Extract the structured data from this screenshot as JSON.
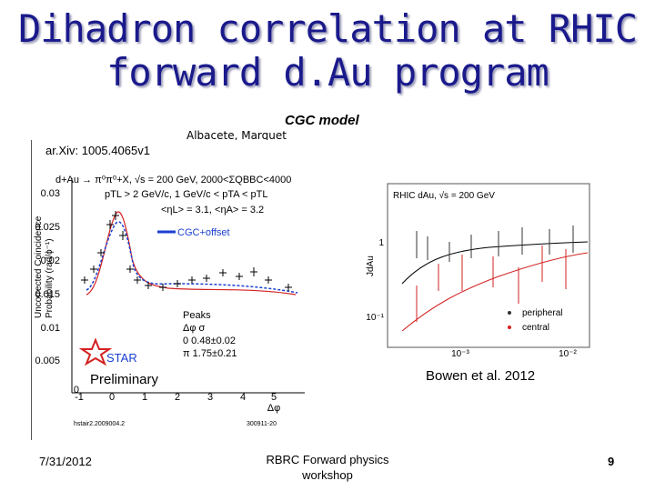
{
  "slide": {
    "title_line1": "Dihadron correlation at RHIC",
    "title_line2": "forward d.Au program",
    "cgc_label": "CGC model",
    "authors_label": "Albacete, Marquet",
    "arxiv_label": "ar.Xiv: 1005.4065v1",
    "bowen_label": "Bowen et al. 2012",
    "footer_date": "7/31/2012",
    "footer_title_line1": "RBRC Forward physics",
    "footer_title_line2": "workshop",
    "page_number": "9"
  },
  "left_plot": {
    "header": "d+Au → π⁰π⁰+X, √s = 200 GeV, 2000<ΣQBBC<4000",
    "cuts1": "pTL > 2 GeV/c, 1 GeV/c < pTA < pTL",
    "cuts2": "<ηL> = 3.1, <ηA> = 3.2",
    "legend_line": "CGC+offset",
    "ylabel_line1": "Uncorrected Coincidence",
    "ylabel_line2": "Probability (rad/ϕ⁻¹)",
    "peaks_title": "Peaks",
    "peaks_header": "Δφ   σ",
    "peak1": "0   0.48±0.02",
    "peak2": "π   1.75±0.21",
    "star_label": "STAR",
    "preliminary": "Preliminary",
    "xlabel": "Δφ",
    "footnote_left": "hstair2.2009004.2",
    "footnote_right": "300911-20",
    "yticks": [
      "0.03",
      "0.025",
      "0.02",
      "0.015",
      "0.01",
      "0.005",
      "0"
    ],
    "xticks": [
      "-1",
      "0",
      "1",
      "2",
      "3",
      "4",
      "5"
    ]
  },
  "right_plot": {
    "title": "RHIC dAu, √s = 200 GeV",
    "ylabel": "JdAu",
    "yticks": [
      "1",
      "10⁻¹"
    ],
    "xticks": [
      "10⁻³",
      "10⁻²"
    ],
    "legend_peripheral": "peripheral",
    "legend_central": "central"
  },
  "colors": {
    "title": "#1a1a8c",
    "cgc_curve": "#1a3fd0",
    "red_curve": "#d32020",
    "star_red": "#d32020"
  }
}
